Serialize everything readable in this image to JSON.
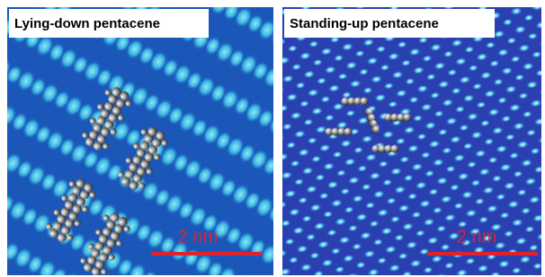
{
  "panels": [
    {
      "title": "Lying-down pentacene",
      "scale_label": "2 nm"
    },
    {
      "title": "Standing-up pentacene",
      "scale_label": "2 nm"
    }
  ]
}
